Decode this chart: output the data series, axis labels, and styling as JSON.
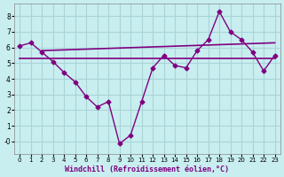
{
  "x_main": [
    0,
    1,
    2,
    3,
    4,
    5,
    6,
    7,
    8,
    9,
    10,
    11,
    12,
    13,
    14,
    15,
    16,
    17,
    18,
    19,
    20,
    21,
    22,
    23
  ],
  "y_main": [
    6.1,
    6.3,
    5.7,
    5.1,
    4.4,
    3.8,
    2.85,
    2.2,
    2.55,
    -0.15,
    0.4,
    2.55,
    4.7,
    5.5,
    4.85,
    4.7,
    5.8,
    6.5,
    8.3,
    7.0,
    6.5,
    5.7,
    4.5,
    5.5
  ],
  "line1_x": [
    0,
    23
  ],
  "line1_y": [
    5.3,
    5.3
  ],
  "line2_x": [
    2,
    23
  ],
  "line2_y": [
    5.8,
    6.3
  ],
  "color_main": "#800080",
  "bg_color": "#c8eef0",
  "grid_color": "#aad4d8",
  "xlabel": "Windchill (Refroidissement éolien,°C)",
  "xlim": [
    -0.5,
    23.5
  ],
  "ylim": [
    -0.8,
    8.8
  ],
  "yticks": [
    0,
    1,
    2,
    3,
    4,
    5,
    6,
    7,
    8
  ],
  "ytick_labels": [
    "-0",
    "1",
    "2",
    "3",
    "4",
    "5",
    "6",
    "7",
    "8"
  ],
  "xticks": [
    0,
    1,
    2,
    3,
    4,
    5,
    6,
    7,
    8,
    9,
    10,
    11,
    12,
    13,
    14,
    15,
    16,
    17,
    18,
    19,
    20,
    21,
    22,
    23
  ]
}
